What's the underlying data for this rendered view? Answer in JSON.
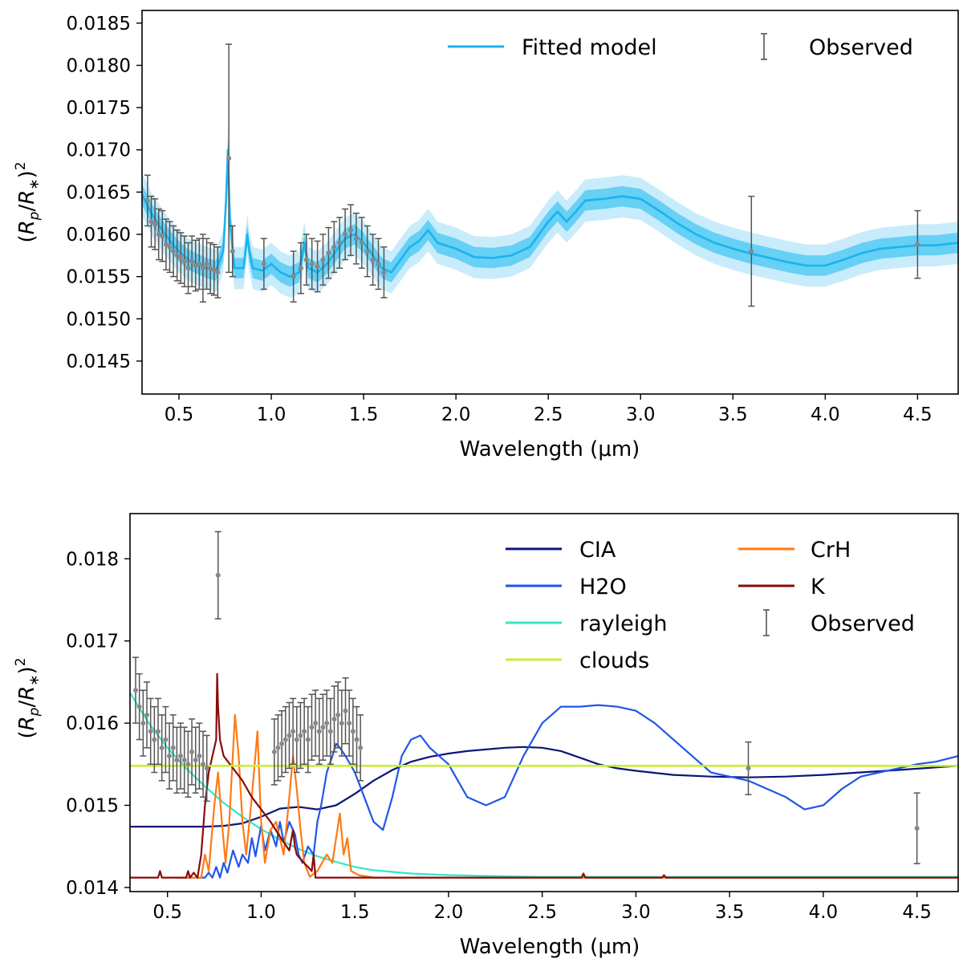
{
  "chart_data": [
    {
      "type": "line",
      "panel": "top",
      "xlabel": "Wavelength (μm)",
      "ylabel": "(Rp/R*)^2",
      "xlim": [
        0.3,
        4.72
      ],
      "ylim": [
        0.01411,
        0.01865
      ],
      "xticks": [
        "0.5",
        "1.0",
        "1.5",
        "2.0",
        "2.5",
        "3.0",
        "3.5",
        "4.0",
        "4.5"
      ],
      "yticks": [
        "0.0145",
        "0.0150",
        "0.0155",
        "0.0160",
        "0.0165",
        "0.0170",
        "0.0175",
        "0.0180",
        "0.0185"
      ],
      "legend": {
        "placement": "top-right",
        "model_label": "Fitted model",
        "observed_label": "Observed"
      },
      "colors": {
        "model": "#1ab3ee",
        "band_inner": "#66d0f5",
        "band_outer": "#c8ecfb",
        "observed": "#555555"
      },
      "model_uncertainty": {
        "inner": 0.00012,
        "outer": 0.00025
      },
      "series": [
        {
          "name": "Fitted model",
          "x": [
            0.3,
            0.35,
            0.4,
            0.45,
            0.5,
            0.55,
            0.6,
            0.65,
            0.7,
            0.74,
            0.755,
            0.765,
            0.775,
            0.8,
            0.85,
            0.87,
            0.88,
            0.9,
            0.95,
            1.0,
            1.05,
            1.1,
            1.15,
            1.18,
            1.2,
            1.25,
            1.3,
            1.35,
            1.4,
            1.45,
            1.5,
            1.55,
            1.6,
            1.65,
            1.7,
            1.75,
            1.8,
            1.85,
            1.9,
            2.0,
            2.1,
            2.2,
            2.3,
            2.4,
            2.5,
            2.55,
            2.6,
            2.65,
            2.7,
            2.8,
            2.9,
            3.0,
            3.1,
            3.2,
            3.3,
            3.4,
            3.5,
            3.6,
            3.7,
            3.8,
            3.9,
            4.0,
            4.1,
            4.2,
            4.3,
            4.4,
            4.5,
            4.6,
            4.72
          ],
          "y": [
            0.01647,
            0.01625,
            0.01608,
            0.01593,
            0.0158,
            0.0157,
            0.01565,
            0.0156,
            0.01557,
            0.0158,
            0.0164,
            0.017,
            0.0162,
            0.0156,
            0.0156,
            0.016,
            0.0158,
            0.0156,
            0.01557,
            0.01565,
            0.01555,
            0.0155,
            0.01555,
            0.0159,
            0.0156,
            0.01555,
            0.01565,
            0.0158,
            0.01595,
            0.016,
            0.0159,
            0.01575,
            0.0156,
            0.01555,
            0.0157,
            0.01585,
            0.01592,
            0.01605,
            0.0159,
            0.01583,
            0.01573,
            0.01572,
            0.01575,
            0.01585,
            0.01615,
            0.01627,
            0.01615,
            0.01627,
            0.0164,
            0.01642,
            0.01645,
            0.01642,
            0.01628,
            0.01613,
            0.016,
            0.0159,
            0.01583,
            0.01577,
            0.01572,
            0.01567,
            0.01563,
            0.01563,
            0.0157,
            0.01578,
            0.01583,
            0.01585,
            0.01587,
            0.01587,
            0.0159
          ]
        },
        {
          "name": "Observed",
          "x": [
            0.33,
            0.35,
            0.37,
            0.39,
            0.41,
            0.43,
            0.45,
            0.47,
            0.49,
            0.51,
            0.53,
            0.55,
            0.57,
            0.59,
            0.61,
            0.63,
            0.65,
            0.67,
            0.69,
            0.71,
            0.77,
            0.79,
            0.96,
            1.12,
            1.16,
            1.19,
            1.22,
            1.25,
            1.28,
            1.31,
            1.34,
            1.37,
            1.4,
            1.43,
            1.46,
            1.49,
            1.52,
            1.55,
            1.58,
            1.61,
            3.6,
            4.5
          ],
          "y": [
            0.0164,
            0.01615,
            0.01612,
            0.016,
            0.01598,
            0.01588,
            0.01585,
            0.0158,
            0.01575,
            0.01572,
            0.01568,
            0.0156,
            0.01568,
            0.01563,
            0.01565,
            0.0156,
            0.01565,
            0.0156,
            0.01558,
            0.01555,
            0.0169,
            0.0158,
            0.01565,
            0.0155,
            0.0156,
            0.0157,
            0.01565,
            0.01562,
            0.0157,
            0.01578,
            0.01585,
            0.0159,
            0.016,
            0.01605,
            0.01595,
            0.0159,
            0.0158,
            0.0157,
            0.01565,
            0.01555,
            0.0158,
            0.01588
          ],
          "err": [
            0.0003,
            0.0003,
            0.0003,
            0.0003,
            0.0003,
            0.0003,
            0.0003,
            0.0003,
            0.0003,
            0.0003,
            0.0003,
            0.0003,
            0.0003,
            0.0003,
            0.0003,
            0.0004,
            0.0003,
            0.0003,
            0.0003,
            0.0003,
            0.00135,
            0.0003,
            0.0003,
            0.0003,
            0.0003,
            0.0003,
            0.0003,
            0.0003,
            0.0003,
            0.0003,
            0.0003,
            0.0003,
            0.0003,
            0.0003,
            0.0003,
            0.0003,
            0.0003,
            0.0003,
            0.0003,
            0.0003,
            0.00065,
            0.0004
          ]
        }
      ]
    },
    {
      "type": "line",
      "panel": "bottom",
      "xlabel": "Wavelength (μm)",
      "ylabel": "(Rp/R*)^2",
      "xlim": [
        0.3,
        4.72
      ],
      "ylim": [
        0.01395,
        0.01855
      ],
      "xticks": [
        "0.5",
        "1.0",
        "1.5",
        "2.0",
        "2.5",
        "3.0",
        "3.5",
        "4.0",
        "4.5"
      ],
      "yticks": [
        "0.014",
        "0.015",
        "0.016",
        "0.017",
        "0.018"
      ],
      "legend": {
        "placement": "top-right",
        "left_column": [
          "CIA",
          "H2O",
          "rayleigh",
          "clouds"
        ],
        "right_column": [
          "CrH",
          "K",
          "Observed"
        ]
      },
      "series": [
        {
          "name": "CIA",
          "color": "#0b1677",
          "x": [
            0.3,
            0.7,
            0.8,
            0.9,
            1.0,
            1.1,
            1.2,
            1.3,
            1.4,
            1.5,
            1.6,
            1.7,
            1.8,
            1.9,
            2.0,
            2.1,
            2.2,
            2.3,
            2.4,
            2.5,
            2.6,
            2.7,
            2.8,
            2.9,
            3.0,
            3.2,
            3.4,
            3.6,
            3.8,
            4.0,
            4.2,
            4.4,
            4.72
          ],
          "y": [
            0.01474,
            0.01474,
            0.01475,
            0.01478,
            0.01486,
            0.01496,
            0.01498,
            0.01495,
            0.015,
            0.01514,
            0.0153,
            0.01543,
            0.01553,
            0.01559,
            0.01563,
            0.01566,
            0.01568,
            0.0157,
            0.01571,
            0.0157,
            0.01566,
            0.01558,
            0.0155,
            0.01545,
            0.01542,
            0.01537,
            0.01535,
            0.01534,
            0.01535,
            0.01537,
            0.0154,
            0.01543,
            0.01548
          ]
        },
        {
          "name": "H2O",
          "color": "#1f57e8",
          "x": [
            0.6,
            0.7,
            0.72,
            0.74,
            0.76,
            0.78,
            0.8,
            0.82,
            0.85,
            0.88,
            0.9,
            0.93,
            0.95,
            0.97,
            1.0,
            1.02,
            1.05,
            1.08,
            1.1,
            1.12,
            1.15,
            1.18,
            1.2,
            1.22,
            1.25,
            1.28,
            1.3,
            1.32,
            1.35,
            1.38,
            1.4,
            1.42,
            1.45,
            1.5,
            1.55,
            1.6,
            1.65,
            1.7,
            1.75,
            1.8,
            1.85,
            1.9,
            2.0,
            2.1,
            2.2,
            2.3,
            2.4,
            2.5,
            2.6,
            2.7,
            2.8,
            2.9,
            3.0,
            3.1,
            3.2,
            3.3,
            3.4,
            3.5,
            3.6,
            3.7,
            3.8,
            3.9,
            4.0,
            4.1,
            4.2,
            4.3,
            4.4,
            4.5,
            4.6,
            4.72
          ],
          "y": [
            0.01412,
            0.01412,
            0.01418,
            0.01412,
            0.01425,
            0.01412,
            0.0143,
            0.01418,
            0.01445,
            0.01425,
            0.0144,
            0.0143,
            0.0146,
            0.01438,
            0.01475,
            0.01445,
            0.0147,
            0.0145,
            0.0148,
            0.01455,
            0.0148,
            0.01465,
            0.0144,
            0.0143,
            0.0145,
            0.0144,
            0.0148,
            0.015,
            0.0154,
            0.0156,
            0.01575,
            0.0157,
            0.0156,
            0.0154,
            0.0151,
            0.0148,
            0.0147,
            0.0151,
            0.0156,
            0.0158,
            0.01585,
            0.0157,
            0.0155,
            0.0151,
            0.015,
            0.0151,
            0.0156,
            0.016,
            0.0162,
            0.0162,
            0.01622,
            0.0162,
            0.01615,
            0.016,
            0.0158,
            0.0156,
            0.0154,
            0.01535,
            0.0153,
            0.0152,
            0.0151,
            0.01495,
            0.015,
            0.0152,
            0.01535,
            0.0154,
            0.01545,
            0.0155,
            0.01553,
            0.0156
          ]
        },
        {
          "name": "rayleigh",
          "color": "#33e8c8",
          "x": [
            0.3,
            0.4,
            0.5,
            0.6,
            0.7,
            0.8,
            0.9,
            1.0,
            1.1,
            1.2,
            1.3,
            1.4,
            1.5,
            1.6,
            1.8,
            2.0,
            2.2,
            2.5,
            3.0,
            3.5,
            4.0,
            4.72
          ],
          "y": [
            0.01637,
            0.016,
            0.0157,
            0.01545,
            0.01523,
            0.01503,
            0.01486,
            0.01471,
            0.01458,
            0.01447,
            0.01438,
            0.01431,
            0.01425,
            0.01421,
            0.01417,
            0.01415,
            0.01414,
            0.01413,
            0.01413,
            0.01413,
            0.01413,
            0.01413
          ]
        },
        {
          "name": "clouds",
          "color": "#c8f032",
          "x": [
            0.3,
            4.72
          ],
          "y": [
            0.01548,
            0.01548
          ]
        },
        {
          "name": "CrH",
          "color": "#ff7a14",
          "x": [
            0.55,
            0.68,
            0.7,
            0.72,
            0.75,
            0.77,
            0.79,
            0.81,
            0.83,
            0.86,
            0.88,
            0.9,
            0.92,
            0.95,
            0.98,
            1.0,
            1.02,
            1.05,
            1.08,
            1.12,
            1.15,
            1.17,
            1.19,
            1.21,
            1.23,
            1.26,
            1.3,
            1.35,
            1.38,
            1.4,
            1.42,
            1.44,
            1.46,
            1.48,
            1.52,
            1.6,
            4.72
          ],
          "y": [
            0.01412,
            0.01412,
            0.0144,
            0.0142,
            0.015,
            0.0154,
            0.0148,
            0.0143,
            0.0148,
            0.0161,
            0.0156,
            0.0148,
            0.0144,
            0.0151,
            0.0159,
            0.0148,
            0.0143,
            0.0147,
            0.0148,
            0.0144,
            0.0151,
            0.0156,
            0.0152,
            0.0147,
            0.0143,
            0.01413,
            0.0142,
            0.0144,
            0.0143,
            0.0146,
            0.0149,
            0.0144,
            0.0146,
            0.0142,
            0.01415,
            0.01412,
            0.01412
          ]
        },
        {
          "name": "K",
          "color": "#8b0a0a",
          "x": [
            0.3,
            0.45,
            0.46,
            0.47,
            0.6,
            0.61,
            0.62,
            0.64,
            0.66,
            0.68,
            0.7,
            0.72,
            0.74,
            0.76,
            0.765,
            0.77,
            0.78,
            0.8,
            0.85,
            0.9,
            0.95,
            1.0,
            1.05,
            1.1,
            1.15,
            1.17,
            1.18,
            1.19,
            1.22,
            1.25,
            1.27,
            1.28,
            1.29,
            1.3,
            2.71,
            2.72,
            2.73,
            3.14,
            3.15,
            3.16,
            4.72
          ],
          "y": [
            0.01412,
            0.01412,
            0.0142,
            0.01412,
            0.01412,
            0.0142,
            0.01412,
            0.01418,
            0.01412,
            0.0144,
            0.015,
            0.0154,
            0.0156,
            0.0158,
            0.0166,
            0.0162,
            0.0158,
            0.0156,
            0.01545,
            0.0153,
            0.0151,
            0.01495,
            0.0148,
            0.01462,
            0.01445,
            0.0147,
            0.0145,
            0.0144,
            0.01432,
            0.01425,
            0.0142,
            0.0144,
            0.01412,
            0.01412,
            0.01412,
            0.01417,
            0.01412,
            0.01412,
            0.01415,
            0.01412,
            0.01412
          ]
        },
        {
          "name": "Observed",
          "color": "#555555",
          "x": [
            0.33,
            0.35,
            0.37,
            0.39,
            0.41,
            0.43,
            0.45,
            0.47,
            0.49,
            0.51,
            0.53,
            0.55,
            0.57,
            0.59,
            0.61,
            0.63,
            0.65,
            0.67,
            0.69,
            0.71,
            0.77,
            1.07,
            1.09,
            1.11,
            1.13,
            1.15,
            1.17,
            1.19,
            1.21,
            1.23,
            1.25,
            1.27,
            1.29,
            1.31,
            1.33,
            1.35,
            1.37,
            1.39,
            1.41,
            1.43,
            1.45,
            1.47,
            1.49,
            1.51,
            1.53,
            3.6,
            4.5
          ],
          "y": [
            0.0164,
            0.0162,
            0.016,
            0.0161,
            0.0159,
            0.0158,
            0.0159,
            0.0157,
            0.0158,
            0.0156,
            0.0157,
            0.01555,
            0.0156,
            0.01555,
            0.0155,
            0.01565,
            0.01555,
            0.0156,
            0.0155,
            0.01545,
            0.0178,
            0.01565,
            0.0157,
            0.01575,
            0.0158,
            0.01585,
            0.0159,
            0.0158,
            0.01585,
            0.0159,
            0.0158,
            0.01595,
            0.016,
            0.0159,
            0.01595,
            0.016,
            0.0159,
            0.01605,
            0.0161,
            0.016,
            0.01615,
            0.016,
            0.0159,
            0.0158,
            0.0157,
            0.01545,
            0.01472
          ],
          "err": [
            0.0004,
            0.0004,
            0.0004,
            0.0004,
            0.0004,
            0.0004,
            0.0004,
            0.0004,
            0.0004,
            0.0004,
            0.0004,
            0.0004,
            0.0004,
            0.0004,
            0.0004,
            0.0004,
            0.0004,
            0.0004,
            0.0004,
            0.0004,
            0.00053,
            0.0004,
            0.0004,
            0.0004,
            0.0004,
            0.0004,
            0.0004,
            0.0004,
            0.0004,
            0.0004,
            0.0004,
            0.0004,
            0.0004,
            0.0004,
            0.0004,
            0.0004,
            0.0004,
            0.0004,
            0.0004,
            0.0004,
            0.0004,
            0.0004,
            0.0004,
            0.0004,
            0.0004,
            0.00032,
            0.00043
          ]
        }
      ]
    }
  ]
}
